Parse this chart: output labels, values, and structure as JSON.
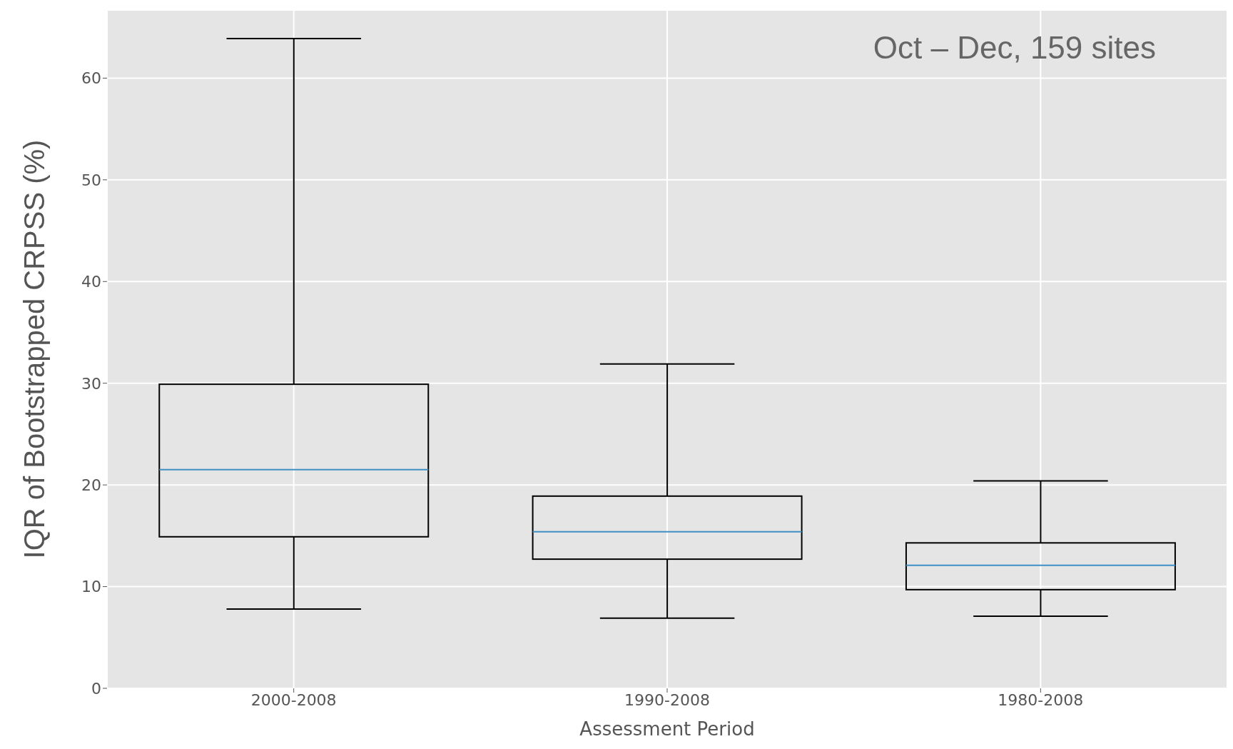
{
  "chart_data": {
    "type": "box",
    "categories": [
      "2000-2008",
      "1990-2008",
      "1980-2008"
    ],
    "boxes": [
      {
        "low": 7.8,
        "q1": 14.9,
        "median": 21.5,
        "q3": 29.9,
        "high": 63.9
      },
      {
        "low": 6.9,
        "q1": 12.7,
        "median": 15.4,
        "q3": 18.9,
        "high": 31.9
      },
      {
        "low": 7.1,
        "q1": 9.7,
        "median": 12.1,
        "q3": 14.3,
        "high": 20.4
      }
    ],
    "color": "#000000",
    "xlabel": "Assessment Period",
    "ylabel": "IQR of Bootstrapped CRPSS (%)",
    "annotations": [
      "Oct – Dec, 159 sites"
    ],
    "ylim": [
      0,
      66.7
    ],
    "yticks": [
      0,
      10,
      20,
      30,
      40,
      50,
      60
    ],
    "grid": true
  }
}
